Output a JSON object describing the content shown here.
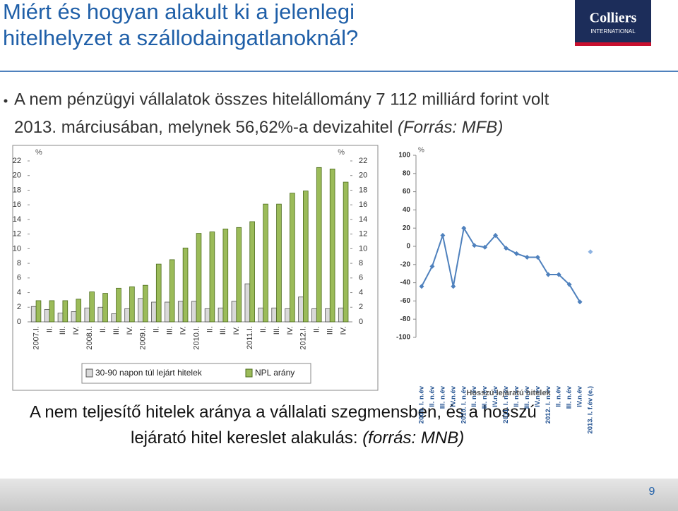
{
  "slide": {
    "title": [
      "Miért és hogyan alakult ki a jelenlegi",
      "hitelhelyzet a szállodaingatlanoknál?"
    ],
    "logo": [
      "Colliers",
      "INTERNATIONAL"
    ],
    "bullet": [
      "A nem pénzügyi vállalatok összes hitelállomány 7 112 milliárd forint volt",
      "2013. márciusában, melynek 56,62%-a devizahitel",
      "(Forrás: MFB)"
    ],
    "caption": [
      "A nem teljesítő hitelek aránya a vállalati szegmensben, és a hosszú",
      "lejárató hitel kereslet alakulás:",
      "(forrás: MNB)"
    ],
    "page_number": "9"
  },
  "chart_data": [
    {
      "type": "bar",
      "y_unit": "%",
      "y2_unit": "%",
      "categories": [
        "2007.I.",
        "II.",
        "III.",
        "IV.",
        "2008.I.",
        "II.",
        "III.",
        "IV.",
        "2009.I.",
        "II.",
        "III.",
        "IV.",
        "2010.I.",
        "II.",
        "III.",
        "IV.",
        "2011.I.",
        "II.",
        "III.",
        "IV.",
        "2012.I.",
        "II.",
        "III.",
        "IV."
      ],
      "series": [
        {
          "name": "30-90 napon túl lejárt hitelek",
          "color": "#d9d9d9",
          "values": [
            2.1,
            1.7,
            1.2,
            1.4,
            1.9,
            2.0,
            1.1,
            1.8,
            3.2,
            2.7,
            2.7,
            2.8,
            2.8,
            1.8,
            1.9,
            2.8,
            5.2,
            1.9,
            1.9,
            1.8,
            3.4,
            1.8,
            1.8,
            1.9
          ]
        },
        {
          "name": "NPL arány",
          "color": "#9bbb59",
          "values": [
            2.9,
            2.9,
            2.9,
            3.1,
            4.1,
            3.9,
            4.6,
            4.8,
            5.0,
            7.9,
            8.5,
            10.1,
            12.1,
            12.3,
            12.7,
            12.9,
            13.7,
            16.1,
            16.1,
            17.6,
            17.9,
            21.1,
            20.9,
            19.1
          ]
        }
      ],
      "ylim": [
        0,
        22
      ],
      "yticks": [
        0,
        2,
        4,
        6,
        8,
        10,
        12,
        14,
        16,
        18,
        20,
        22
      ],
      "y2lim": [
        0,
        22
      ],
      "y2ticks": [
        0,
        2,
        4,
        6,
        8,
        10,
        12,
        14,
        16,
        18,
        20,
        22
      ],
      "legend": "bottom"
    },
    {
      "type": "line",
      "title": "Hosszú lejáratú hitelek",
      "y_unit": "%",
      "categories": [
        "2009. I. n.év",
        "II. n.év",
        "III. n.év",
        "IV.n.év",
        "2010. I. n.év",
        "II. n.év",
        "III. n.év",
        "IV.n.év",
        "2011. I. n.év",
        "II. n.év",
        "III. n.év",
        "IV.n.év",
        "2012. I. n.év",
        "II. n.év",
        "III. n.év",
        "IV.n.év",
        "2013. I. f.év (e.)"
      ],
      "series": [
        {
          "color": "#4f81bd",
          "values": [
            -44,
            -22,
            12,
            -44,
            20,
            1,
            -1,
            12,
            -2,
            -8,
            -12,
            -12,
            -31,
            -31,
            -42,
            -61,
            null
          ]
        },
        {
          "color": "#8db3e2",
          "values": [
            null,
            null,
            null,
            null,
            null,
            null,
            null,
            null,
            null,
            null,
            null,
            null,
            null,
            null,
            null,
            null,
            -6
          ]
        }
      ],
      "ylim": [
        -100,
        100
      ],
      "yticks": [
        -100,
        -80,
        -60,
        -40,
        -20,
        0,
        20,
        40,
        60,
        80,
        100
      ]
    }
  ]
}
